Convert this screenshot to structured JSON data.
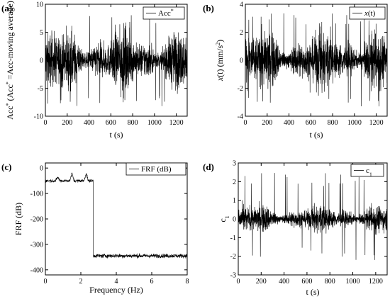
{
  "figure": {
    "panels": [
      "(a)",
      "(b)",
      "(c)",
      "(d)"
    ]
  },
  "chart_data": [
    {
      "id": "a",
      "type": "line",
      "label": "(a)",
      "ylabel": "Acc* (Acc* =Acc-moving average)",
      "ylabel_parts": [
        "Acc",
        "*",
        " (Acc",
        "*",
        " =Acc-moving average)"
      ],
      "xlabel": "t (s)",
      "legend": "Acc*",
      "legend_parts": [
        "Acc",
        "*"
      ],
      "xlim": [
        0,
        1300
      ],
      "ylim": [
        -10,
        10
      ],
      "xticks": [
        0,
        200,
        400,
        600,
        800,
        1000,
        1200
      ],
      "yticks": [
        -10,
        -5,
        0,
        5,
        10
      ],
      "series": [
        {
          "signal": "random-oscillation",
          "typical_amplitude": 5,
          "peak_max": 8.5,
          "peak_min": -8.5
        }
      ],
      "legend_position": "top-right"
    },
    {
      "id": "b",
      "type": "line",
      "label": "(b)",
      "ylabel": "x(t) (mm/s2)",
      "ylabel_parts": [
        "x",
        "(t) (mm/s",
        "2",
        ")"
      ],
      "xlabel": "t (s)",
      "legend": "x(t)",
      "legend_parts": [
        "x",
        "(t)"
      ],
      "xlim": [
        0,
        1300
      ],
      "ylim": [
        -4,
        4
      ],
      "xticks": [
        0,
        200,
        400,
        600,
        800,
        1000,
        1200
      ],
      "yticks": [
        -4,
        -2,
        0,
        2,
        4
      ],
      "series": [
        {
          "signal": "random-oscillation",
          "typical_amplitude": 2,
          "peak_max": 3.4,
          "peak_min": -3.3
        }
      ],
      "legend_position": "top-right"
    },
    {
      "id": "c",
      "type": "line",
      "label": "(c)",
      "ylabel": "FRF (dB)",
      "xlabel": "Frequency (Hz)",
      "legend": "FRF (dB)",
      "xlim": [
        0,
        8
      ],
      "ylim": [
        -420,
        20
      ],
      "xticks": [
        0,
        2,
        4,
        6,
        8
      ],
      "yticks": [
        0,
        -100,
        -200,
        -300,
        -400
      ],
      "series": [
        {
          "signal": "frf-step",
          "passband_end_hz": 2.7,
          "passband_level_db": -50,
          "passband_peaks": [
            {
              "x": 0.7,
              "y": -35
            },
            {
              "x": 1.5,
              "y": -20
            },
            {
              "x": 2.3,
              "y": -20
            }
          ],
          "stopband_level_db": -345
        }
      ],
      "legend_position": "top-right"
    },
    {
      "id": "d",
      "type": "line",
      "label": "(d)",
      "ylabel": "c1",
      "ylabel_parts": [
        "c",
        "1"
      ],
      "xlabel": "t (s)",
      "legend": "c1",
      "legend_parts": [
        "c",
        "1"
      ],
      "xlim": [
        0,
        1300
      ],
      "ylim": [
        -3,
        3
      ],
      "xticks": [
        0,
        200,
        400,
        600,
        800,
        1000,
        1200
      ],
      "yticks": [
        -3,
        -2,
        -1,
        0,
        1,
        2,
        3
      ],
      "series": [
        {
          "signal": "random-oscillation",
          "typical_amplitude": 0.7,
          "peak_max": 2.5,
          "peak_min": -2.2
        }
      ],
      "legend_position": "top-right"
    }
  ]
}
